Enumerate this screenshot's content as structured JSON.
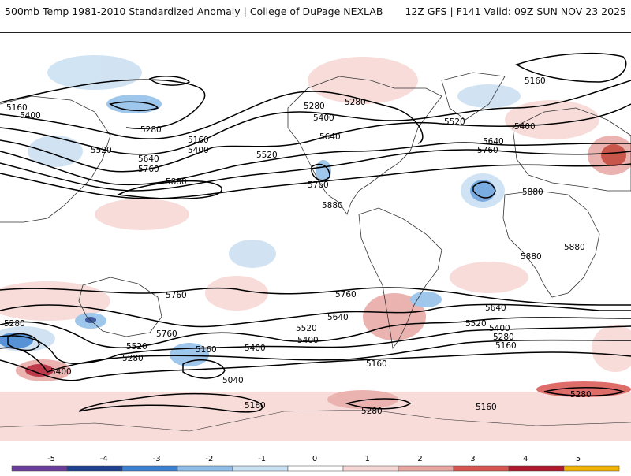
{
  "header": {
    "title_left": "500mb Temp 1981-2010 Standardized Anomaly | College of DuPage NEXLAB",
    "title_right": "12Z GFS | F141 Valid: 09Z SUN NOV 23 2025"
  },
  "contour_labels": [
    "5160",
    "5400",
    "5280",
    "5160",
    "5400",
    "5520",
    "5640",
    "5760",
    "5880",
    "5520",
    "5280",
    "5400",
    "5640",
    "5760",
    "5880",
    "5280",
    "5520",
    "5160",
    "5640",
    "5760",
    "5400",
    "5880",
    "5880",
    "5880",
    "5760",
    "5760",
    "5640",
    "5520",
    "5400",
    "5280",
    "5160",
    "5040",
    "5160",
    "5280",
    "5280",
    "5400",
    "5520",
    "5640",
    "5760",
    "5640",
    "5520",
    "5400",
    "5280",
    "5160",
    "5160",
    "5280",
    "5400",
    "5160",
    "5280"
  ],
  "colorbar": {
    "ticks": [
      "-5",
      "-4",
      "-3",
      "-2",
      "-1",
      "0",
      "1",
      "2",
      "3",
      "4",
      "5"
    ],
    "colors": [
      "#6a3d9a",
      "#1f3f8f",
      "#3b7fd0",
      "#8fbde8",
      "#c9dff2",
      "#ffffff",
      "#f6d6d4",
      "#e8a6a3",
      "#d9534f",
      "#b2182b",
      "#f0b400"
    ]
  },
  "shading_colors": {
    "cold_light": "#c9dff2",
    "cold_mid": "#8fbde8",
    "cold_dark": "#3b7fd0",
    "warm_light": "#f6d6d4",
    "warm_mid": "#e8a6a3",
    "warm_dark": "#c0392b"
  }
}
